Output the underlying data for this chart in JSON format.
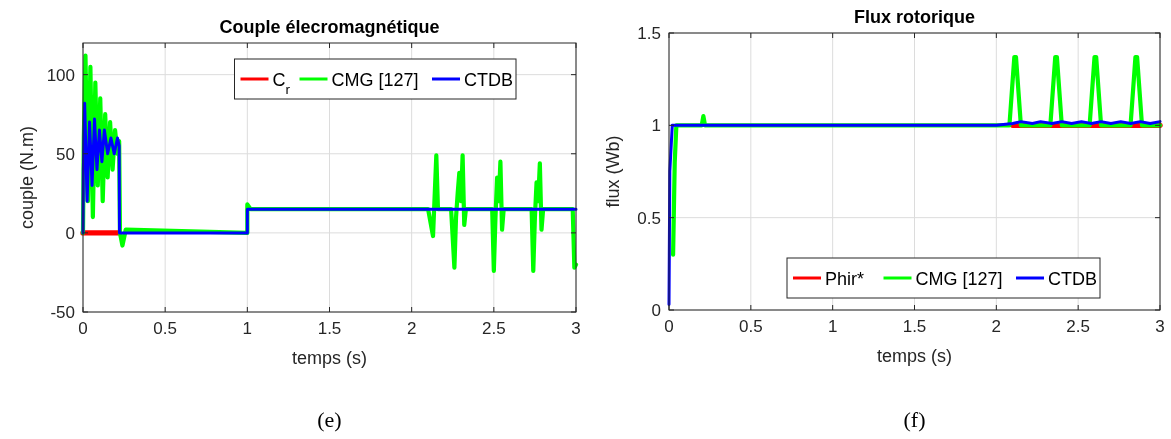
{
  "chart_data": [
    {
      "type": "line",
      "title": "Couple élecromagnétique",
      "xlabel": "temps (s)",
      "ylabel": "couple (N.m)",
      "xlim": [
        0,
        3
      ],
      "ylim": [
        -50,
        120
      ],
      "xticks": [
        0,
        0.5,
        1,
        1.5,
        2,
        2.5,
        3
      ],
      "yticks": [
        -50,
        0,
        50,
        100
      ],
      "grid": true,
      "legend": "top right",
      "annotations": [
        "(e)"
      ],
      "series": [
        {
          "name": "C$_{r}$",
          "color": "#ff0000",
          "x": [
            0,
            0.22
          ],
          "values": [
            0,
            0
          ]
        },
        {
          "name": "CMG [127]",
          "color": "#00ff00",
          "x": [
            0,
            0.005,
            0.015,
            0.03,
            0.045,
            0.06,
            0.075,
            0.09,
            0.105,
            0.12,
            0.135,
            0.15,
            0.165,
            0.18,
            0.195,
            0.21,
            0.22,
            0.225,
            0.24,
            0.26,
            1.0,
            1.0,
            1.02,
            2.1,
            2.13,
            2.15,
            2.16,
            2.24,
            2.26,
            2.27,
            2.28,
            2.29,
            2.3,
            2.31,
            2.32,
            2.33,
            2.49,
            2.5,
            2.51,
            2.52,
            2.53,
            2.54,
            2.55,
            2.56,
            2.73,
            2.74,
            2.75,
            2.76,
            2.77,
            2.78,
            2.79,
            2.8,
            2.98,
            2.99,
            3.0
          ],
          "values": [
            0,
            60,
            112,
            20,
            105,
            10,
            95,
            30,
            85,
            20,
            75,
            35,
            70,
            40,
            65,
            50,
            58,
            0,
            -8,
            2,
            0,
            18,
            15,
            15,
            -2,
            49,
            15,
            15,
            -22,
            10,
            25,
            38,
            20,
            49,
            5,
            15,
            15,
            -24,
            10,
            35,
            20,
            45,
            2,
            15,
            15,
            -24,
            10,
            32,
            20,
            44,
            2,
            15,
            15,
            -22,
            -20
          ]
        },
        {
          "name": "CTDB",
          "color": "#0000ff",
          "x": [
            0,
            0.002,
            0.01,
            0.025,
            0.04,
            0.055,
            0.07,
            0.085,
            0.1,
            0.115,
            0.13,
            0.15,
            0.17,
            0.19,
            0.21,
            0.22,
            0.222,
            1.0,
            1.0,
            3.0
          ],
          "values": [
            0,
            40,
            82,
            20,
            70,
            30,
            72,
            40,
            65,
            45,
            65,
            50,
            60,
            50,
            60,
            55,
            0,
            0,
            15,
            15
          ]
        }
      ]
    },
    {
      "type": "line",
      "title": "Flux rotorique",
      "xlabel": "temps (s)",
      "ylabel": "flux (Wb)",
      "xlim": [
        0,
        3
      ],
      "ylim": [
        0,
        1.5
      ],
      "xticks": [
        0,
        0.5,
        1,
        1.5,
        2,
        2.5,
        3
      ],
      "yticks": [
        0,
        0.5,
        1,
        1.5
      ],
      "grid": true,
      "legend": "bottom right",
      "annotations": [
        "(f)"
      ],
      "series": [
        {
          "name": "Phir*",
          "color": "#ff0000",
          "x": [
            2.1,
            3
          ],
          "values": [
            1,
            1
          ]
        },
        {
          "name": "CMG [127]",
          "color": "#00ff00",
          "x": [
            0.025,
            0.035,
            0.045,
            0.06,
            0.2,
            0.21,
            0.22,
            2.0,
            2.08,
            2.11,
            2.12,
            2.15,
            2.33,
            2.36,
            2.37,
            2.4,
            2.57,
            2.6,
            2.61,
            2.64,
            2.82,
            2.85,
            2.86,
            2.89,
            3.0
          ],
          "values": [
            0.3,
            0.8,
            1,
            1,
            1,
            1.05,
            1,
            1,
            1,
            1.37,
            1.37,
            1,
            1,
            1.37,
            1.37,
            1,
            1,
            1.37,
            1.37,
            1,
            1,
            1.37,
            1.37,
            1,
            1
          ]
        },
        {
          "name": "CTDB",
          "color": "#0000ff",
          "x": [
            0,
            0.005,
            0.02,
            2.0,
            2.1,
            2.15,
            2.22,
            2.27,
            2.34,
            2.4,
            2.46,
            2.52,
            2.58,
            2.64,
            2.7,
            2.76,
            2.82,
            2.88,
            2.94,
            3.0
          ],
          "values": [
            0.03,
            0.75,
            1,
            1,
            1.01,
            1.02,
            1.01,
            1.02,
            1.01,
            1.02,
            1.01,
            1.02,
            1.01,
            1.02,
            1.01,
            1.02,
            1.01,
            1.02,
            1.01,
            1.02
          ]
        }
      ]
    }
  ]
}
